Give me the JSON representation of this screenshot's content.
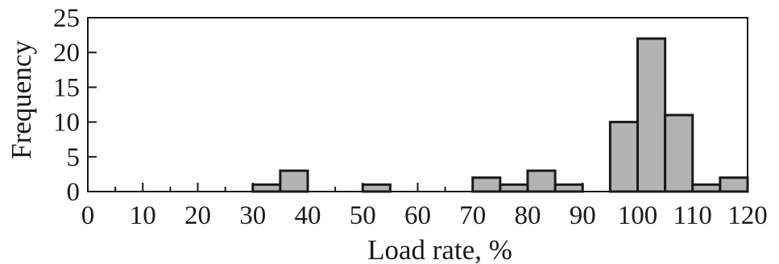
{
  "chart_data": {
    "type": "bar",
    "xlabel": "Load rate, %",
    "ylabel": "Frequency",
    "xlim": [
      0,
      120
    ],
    "ylim": [
      0,
      25
    ],
    "x_ticks": [
      0,
      10,
      20,
      30,
      40,
      50,
      60,
      70,
      80,
      90,
      100,
      110,
      120
    ],
    "y_ticks": [
      0,
      5,
      10,
      15,
      20,
      25
    ],
    "bin_width": 5,
    "bins": [
      {
        "start": 30,
        "end": 35,
        "value": 1
      },
      {
        "start": 35,
        "end": 40,
        "value": 3
      },
      {
        "start": 50,
        "end": 55,
        "value": 1
      },
      {
        "start": 70,
        "end": 75,
        "value": 2
      },
      {
        "start": 75,
        "end": 80,
        "value": 1
      },
      {
        "start": 80,
        "end": 85,
        "value": 3
      },
      {
        "start": 85,
        "end": 90,
        "value": 1
      },
      {
        "start": 95,
        "end": 100,
        "value": 10
      },
      {
        "start": 100,
        "end": 105,
        "value": 22
      },
      {
        "start": 105,
        "end": 110,
        "value": 11
      },
      {
        "start": 110,
        "end": 115,
        "value": 1
      },
      {
        "start": 115,
        "end": 120,
        "value": 2
      }
    ],
    "bar_color": "#b3b3b3",
    "edge_color": "#1a1a1a",
    "grid": false,
    "legend": "none"
  }
}
